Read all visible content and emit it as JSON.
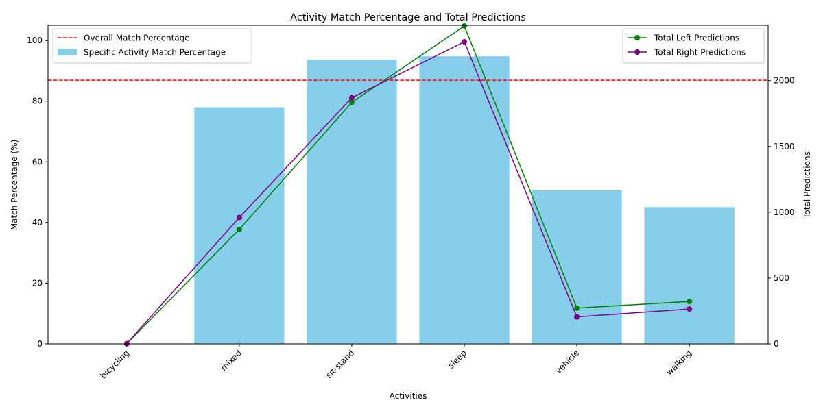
{
  "chart_data": {
    "type": "bar",
    "title": "Activity Match Percentage and Total Predictions",
    "xlabel": "Activities",
    "ylabel": "Match Percentage (%)",
    "y2label": "Total Predictions",
    "categories": [
      "bicycling",
      "mixed",
      "sit-stand",
      "sleep",
      "vehicle",
      "walking"
    ],
    "ylim": [
      0,
      105
    ],
    "y2lim": [
      0,
      2420
    ],
    "yticks": [
      0,
      20,
      40,
      60,
      80,
      100
    ],
    "y2ticks": [
      0,
      500,
      1000,
      1500,
      2000
    ],
    "grid": false,
    "bar_series": {
      "name": "Specific Activity Match Percentage",
      "color": "#87CEEB",
      "values": [
        0,
        78.0,
        93.7,
        94.8,
        50.6,
        45.1
      ]
    },
    "overall_line": {
      "name": "Overall Match Percentage",
      "color": "#FF0000",
      "value": 86.9
    },
    "line_series": [
      {
        "name": "Total Left Predictions",
        "color": "#008000",
        "values": [
          2,
          870,
          1835,
          2415,
          272,
          322
        ]
      },
      {
        "name": "Total Right Predictions",
        "color": "#800080",
        "values": [
          2,
          960,
          1870,
          2295,
          205,
          265
        ]
      }
    ],
    "legend_left_placement": "upper-left",
    "legend_right_placement": "upper-right"
  }
}
